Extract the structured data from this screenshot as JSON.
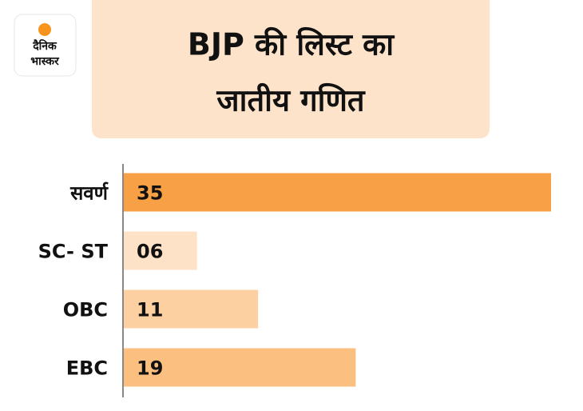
{
  "logo": {
    "lines": [
      "दैनिक",
      "भास्कर"
    ]
  },
  "chart_data": {
    "type": "hbar",
    "title": [
      "BJP की लिस्ट का",
      "जातीय गणित"
    ],
    "categories": [
      "सवर्ण",
      "SC- ST",
      "OBC",
      "EBC"
    ],
    "values": [
      35,
      6,
      11,
      19
    ],
    "value_labels": [
      "35",
      "06",
      "11",
      "19"
    ],
    "colors": [
      "#f7a046",
      "#fde2c8",
      "#fdd0a2",
      "#fbbf7f"
    ],
    "xlim": [
      0,
      35
    ]
  }
}
